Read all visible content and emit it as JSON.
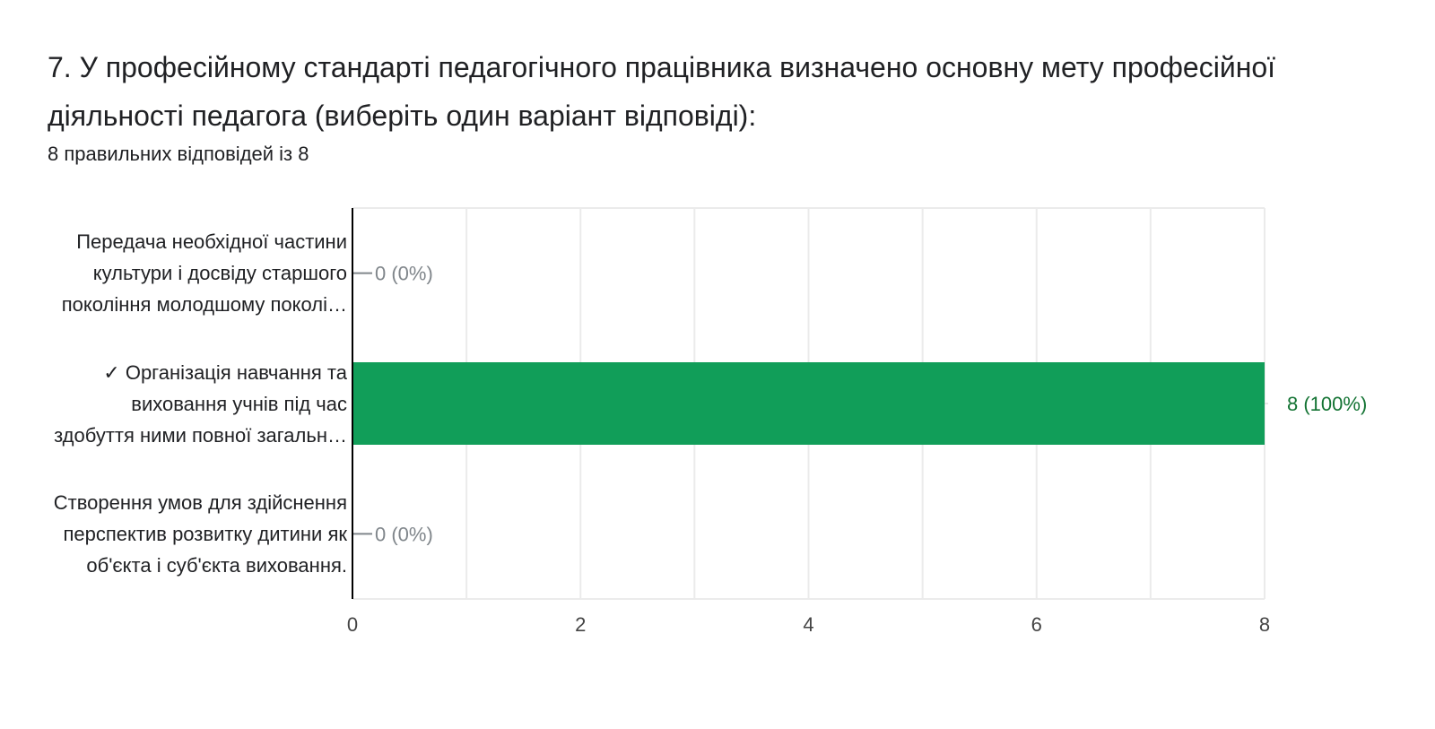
{
  "question": {
    "title": "7. У професійному стандарті педагогічного працівника визначено основну мету професійної діяльності педагога (виберіть один варіант відповіді):",
    "subtitle": "8 правильних відповідей із 8"
  },
  "chart_data": {
    "type": "bar",
    "orientation": "horizontal",
    "categories": [
      [
        "Передача необхідної частини",
        "культури і досвіду старшого",
        "покоління молодшому поколі…"
      ],
      [
        "✓ Організація навчання та",
        "виховання учнів під час",
        "здобуття ними повної загальн…"
      ],
      [
        "Створення умов для здійснення",
        "перспектив розвитку дитини як",
        "об'єкта і суб'єкта виховання."
      ]
    ],
    "values": [
      0,
      8,
      0
    ],
    "value_labels": [
      "0 (0%)",
      "8 (100%)",
      "0 (0%)"
    ],
    "correct": [
      false,
      true,
      false
    ],
    "xlim": [
      0,
      8
    ],
    "x_ticks": [
      "0",
      "2",
      "4",
      "6",
      "8"
    ],
    "grid": true,
    "colors": {
      "bar": "#119e59",
      "correct_label": "#137333",
      "zero_label": "#80868b",
      "grid": "#ebebeb",
      "axis": "#000000",
      "tick_text": "#444444"
    }
  }
}
